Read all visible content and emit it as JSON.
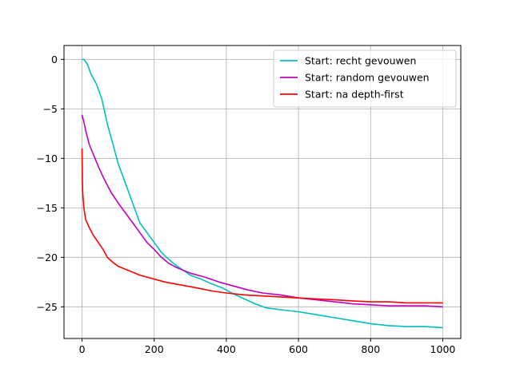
{
  "chart_data": {
    "type": "line",
    "title": "",
    "xlabel": "",
    "ylabel": "",
    "xlim": [
      -50,
      1050
    ],
    "ylim": [
      -28.2,
      1.4
    ],
    "xticks": [
      0,
      200,
      400,
      600,
      800,
      1000
    ],
    "yticks": [
      0,
      -5,
      -10,
      -15,
      -20,
      -25
    ],
    "grid": true,
    "legend_position": "top-right",
    "series": [
      {
        "name": "Start: recht gevouwen",
        "color": "#00bfbf",
        "x": [
          0,
          5,
          15,
          25,
          40,
          55,
          70,
          85,
          100,
          120,
          140,
          160,
          180,
          200,
          220,
          240,
          260,
          280,
          300,
          330,
          360,
          390,
          420,
          450,
          480,
          510,
          550,
          600,
          650,
          700,
          750,
          800,
          850,
          900,
          950,
          1000
        ],
        "y": [
          0,
          0,
          -0.5,
          -1.5,
          -2.5,
          -4,
          -6.5,
          -8.5,
          -10.5,
          -12.5,
          -14.5,
          -16.5,
          -17.5,
          -18.5,
          -19.5,
          -20.2,
          -20.8,
          -21.3,
          -21.8,
          -22.2,
          -22.7,
          -23.1,
          -23.7,
          -24.2,
          -24.7,
          -25.1,
          -25.3,
          -25.5,
          -25.8,
          -26.1,
          -26.4,
          -26.7,
          -26.9,
          -27.0,
          -27.0,
          -27.1
        ]
      },
      {
        "name": "Start: random gevouwen",
        "color": "#bf00bf",
        "x": [
          0,
          5,
          10,
          20,
          30,
          45,
          60,
          80,
          100,
          120,
          140,
          160,
          180,
          200,
          220,
          240,
          260,
          280,
          300,
          340,
          380,
          420,
          460,
          500,
          550,
          600,
          650,
          700,
          750,
          800,
          850,
          900,
          950,
          1000
        ],
        "y": [
          -5.6,
          -6.3,
          -7.2,
          -8.6,
          -9.5,
          -10.8,
          -12.0,
          -13.4,
          -14.5,
          -15.5,
          -16.5,
          -17.5,
          -18.5,
          -19.2,
          -20.0,
          -20.6,
          -21.0,
          -21.3,
          -21.6,
          -22.0,
          -22.5,
          -22.9,
          -23.3,
          -23.6,
          -23.8,
          -24.1,
          -24.3,
          -24.5,
          -24.7,
          -24.8,
          -24.9,
          -24.9,
          -24.9,
          -25.0
        ]
      },
      {
        "name": "Start: na depth-first",
        "color": "#ff0000",
        "x": [
          0,
          1,
          2,
          5,
          10,
          20,
          30,
          45,
          60,
          70,
          85,
          100,
          120,
          140,
          160,
          180,
          200,
          230,
          260,
          290,
          320,
          360,
          400,
          450,
          500,
          550,
          600,
          650,
          700,
          750,
          800,
          850,
          900,
          950,
          1000
        ],
        "y": [
          -9.0,
          -12.3,
          -13.5,
          -15.0,
          -16.2,
          -17.0,
          -17.7,
          -18.5,
          -19.3,
          -20.0,
          -20.5,
          -20.9,
          -21.2,
          -21.5,
          -21.8,
          -22.0,
          -22.2,
          -22.5,
          -22.7,
          -22.9,
          -23.1,
          -23.4,
          -23.6,
          -23.8,
          -23.9,
          -24.0,
          -24.1,
          -24.2,
          -24.3,
          -24.4,
          -24.5,
          -24.5,
          -24.6,
          -24.6,
          -24.6
        ]
      }
    ]
  }
}
